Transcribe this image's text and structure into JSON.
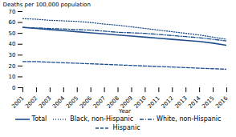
{
  "chart_data": {
    "type": "line",
    "x": [
      2001,
      2002,
      2003,
      2004,
      2005,
      2006,
      2007,
      2008,
      2009,
      2010,
      2011,
      2012,
      2013,
      2014,
      2015,
      2016
    ],
    "series": [
      {
        "name": "Total",
        "line_style": "solid",
        "values": [
          55.5,
          54.5,
          53.5,
          52.5,
          51.5,
          50.5,
          49.5,
          48.5,
          47.5,
          46.5,
          45.5,
          44.5,
          43.5,
          42.5,
          41.0,
          39.0
        ]
      },
      {
        "name": "Black, non-Hispanic",
        "line_style": "dotted",
        "values": [
          63.5,
          63.0,
          62.0,
          61.5,
          61.0,
          60.0,
          58.5,
          57.5,
          56.0,
          54.5,
          53.0,
          51.5,
          50.0,
          48.5,
          46.5,
          44.5
        ]
      },
      {
        "name": "White, non-Hispanic",
        "line_style": "dashdot",
        "values": [
          55.5,
          55.0,
          54.5,
          54.0,
          53.5,
          53.0,
          52.0,
          51.0,
          50.5,
          50.0,
          49.0,
          48.0,
          47.0,
          46.0,
          44.5,
          43.0
        ]
      },
      {
        "name": "Hispanic",
        "line_style": "dashed",
        "values": [
          24.0,
          24.0,
          23.5,
          23.0,
          22.5,
          22.0,
          21.5,
          21.0,
          20.5,
          20.0,
          19.5,
          19.0,
          18.5,
          18.0,
          17.5,
          17.0
        ]
      }
    ],
    "color": "#1f4e8c",
    "xlabel": "Year",
    "ylabel": "Deaths per 100,000 population",
    "xlim": [
      2001,
      2016
    ],
    "xticks": [
      2001,
      2002,
      2003,
      2004,
      2005,
      2006,
      2007,
      2008,
      2009,
      2010,
      2011,
      2012,
      2013,
      2014,
      2015,
      2016
    ],
    "ylim": [
      0,
      70
    ],
    "yticks": [
      0,
      10,
      20,
      30,
      40,
      50,
      60,
      70
    ],
    "grid": false,
    "legend": "bottom"
  }
}
